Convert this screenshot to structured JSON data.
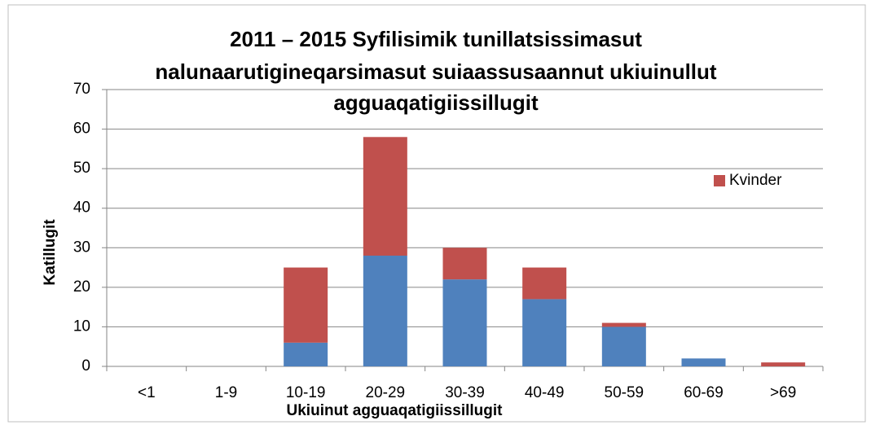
{
  "chart_data": {
    "type": "stacked_bar",
    "title": [
      "2011 – 2015 Syfilisimik tunillatsissimasut",
      "nalunaarutigineqarsimasut suiaassusaannut ukiuinullut",
      "agguaqatigiissillugit"
    ],
    "x_label": "Ukiuinut agguaqatigiissillugit",
    "y_label": "Katillugit",
    "categories": [
      "<1",
      "1-9",
      "10-19",
      "20-29",
      "30-39",
      "40-49",
      "50-59",
      "60-69",
      ">69"
    ],
    "series": [
      {
        "color": "#4f81bd",
        "values": [
          0,
          0,
          6,
          28,
          22,
          17,
          10,
          2,
          0
        ]
      },
      {
        "name": "Kvinder",
        "color": "#c0504d",
        "values": [
          0,
          0,
          19,
          30,
          8,
          8,
          1,
          0,
          1
        ]
      }
    ],
    "ylim": [
      0,
      70
    ],
    "yticks": [
      0,
      10,
      20,
      30,
      40,
      50,
      60,
      70
    ],
    "grid": true,
    "legend": "right"
  }
}
